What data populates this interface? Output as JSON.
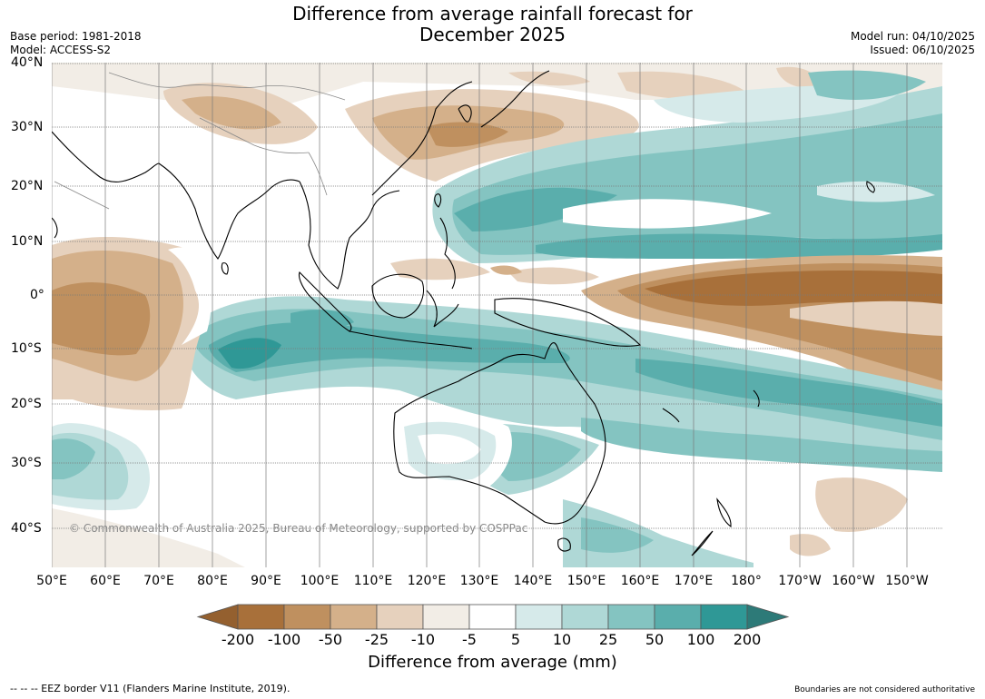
{
  "title_line1": "Difference from average rainfall forecast for",
  "title_line2": "December 2025",
  "base_period": "Base period: 1981-2018",
  "model": "Model: ACCESS-S2",
  "model_run": "Model run: 04/10/2025",
  "issued": "Issued: 06/10/2025",
  "lat_labels": [
    "40°N",
    "30°N",
    "20°N",
    "10°N",
    "0°",
    "10°S",
    "20°S",
    "30°S",
    "40°S"
  ],
  "lon_labels": [
    "50°E",
    "60°E",
    "70°E",
    "80°E",
    "90°E",
    "100°E",
    "110°E",
    "120°E",
    "130°E",
    "140°E",
    "150°E",
    "160°E",
    "170°E",
    "180°",
    "170°W",
    "160°W",
    "150°W"
  ],
  "copyright": "© Commonwealth of Australia 2025, Bureau of Meteorology, supported by COSPPac",
  "colorbar": {
    "ticks": [
      "-200",
      "-100",
      "-50",
      "-25",
      "-10",
      "-5",
      "5",
      "10",
      "25",
      "50",
      "100",
      "200"
    ],
    "colors": [
      "#a8703a",
      "#bf905f",
      "#d4b08a",
      "#e6d1bd",
      "#f2ede6",
      "#ffffff",
      "#d6eaea",
      "#afd8d6",
      "#84c4c1",
      "#5aaeac",
      "#2f9896"
    ],
    "under_color": "#94602f",
    "over_color": "#2d7a78",
    "label": "Difference from average (mm)"
  },
  "eez_note": "--  --  -- EEZ border V11 (Flanders Marine Institute, 2019).",
  "boundaries_note": "Boundaries are not considered authoritative"
}
